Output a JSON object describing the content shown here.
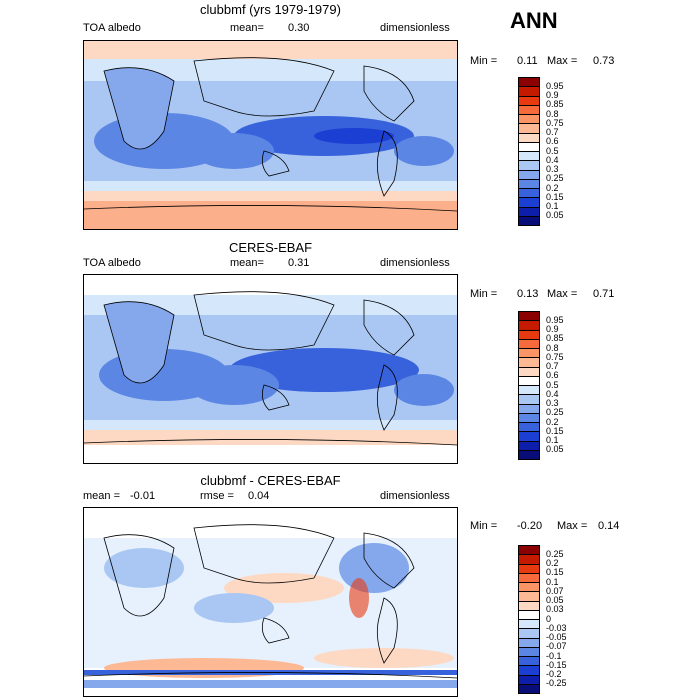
{
  "annotation": "ANN",
  "panels": [
    {
      "title": "clubbmf (yrs 1979-1979)",
      "left_label": "TOA albedo",
      "center_label": "mean=",
      "center_value": "0.30",
      "right_label": "dimensionless",
      "min_label": "Min =",
      "min_value": "0.11",
      "max_label": "Max =",
      "max_value": "0.73",
      "colorbar": [
        "0.95",
        "0.9",
        "0.85",
        "0.8",
        "0.75",
        "0.7",
        "0.6",
        "0.5",
        "0.4",
        "0.3",
        "0.25",
        "0.2",
        "0.15",
        "0.1",
        "0.05"
      ],
      "colors": [
        "#8b0000",
        "#c41a00",
        "#e83a10",
        "#f76a3c",
        "#fb9565",
        "#fdb894",
        "#fdd8c2",
        "#ffffff",
        "#d5e8fb",
        "#a9c7f2",
        "#85a8ec",
        "#5c86e4",
        "#3762db",
        "#1b3fd2",
        "#0d1eab",
        "#080d78"
      ]
    },
    {
      "title": "CERES-EBAF",
      "left_label": "TOA albedo",
      "center_label": "mean=",
      "center_value": "0.31",
      "right_label": "dimensionless",
      "min_label": "Min =",
      "min_value": "0.13",
      "max_label": "Max =",
      "max_value": "0.71",
      "colorbar": [
        "0.95",
        "0.9",
        "0.85",
        "0.8",
        "0.75",
        "0.7",
        "0.6",
        "0.5",
        "0.4",
        "0.3",
        "0.25",
        "0.2",
        "0.15",
        "0.1",
        "0.05"
      ],
      "colors": [
        "#8b0000",
        "#c41a00",
        "#e83a10",
        "#f76a3c",
        "#fb9565",
        "#fdb894",
        "#fdd8c2",
        "#ffffff",
        "#d5e8fb",
        "#a9c7f2",
        "#85a8ec",
        "#5c86e4",
        "#3762db",
        "#1b3fd2",
        "#0d1eab",
        "#080d78"
      ]
    },
    {
      "title": "clubbmf - CERES-EBAF",
      "left_label": "mean =",
      "left_value": "-0.01",
      "center_label": "rmse =",
      "center_value": "0.04",
      "right_label": "dimensionless",
      "min_label": "Min =",
      "min_value": "-0.20",
      "max_label": "Max =",
      "max_value": "0.14",
      "colorbar": [
        "0.25",
        "0.2",
        "0.15",
        "0.1",
        "0.07",
        "0.05",
        "0.03",
        "0",
        "-0.03",
        "-0.05",
        "-0.07",
        "-0.1",
        "-0.15",
        "-0.2",
        "-0.25"
      ],
      "colors": [
        "#8b0000",
        "#c41a00",
        "#e83a10",
        "#f76a3c",
        "#fb9565",
        "#fdb894",
        "#fdd8c2",
        "#ffffff",
        "#d5e8fb",
        "#a9c7f2",
        "#85a8ec",
        "#5c86e4",
        "#3762db",
        "#1b3fd2",
        "#0d1eab",
        "#080d78"
      ]
    }
  ]
}
